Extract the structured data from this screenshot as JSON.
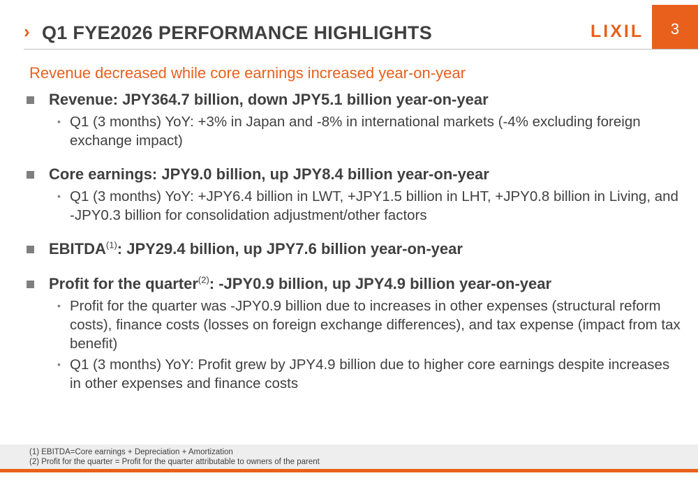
{
  "header": {
    "chevron": "›",
    "title": "Q1 FYE2026 PERFORMANCE HIGHLIGHTS",
    "logo_text": "LIXIL",
    "page_number": "3",
    "accent_color": "#e8601c"
  },
  "subtitle": "Revenue decreased while core earnings increased year-on-year",
  "bullets": [
    {
      "text": "Revenue: JPY364.7 billion, down JPY5.1 billion year-on-year",
      "subs": [
        "Q1 (3 months) YoY: +3% in Japan and -8% in international markets (-4% excluding foreign exchange impact)"
      ]
    },
    {
      "text": "Core earnings: JPY9.0 billion, up JPY8.4 billion year-on-year",
      "subs": [
        "Q1 (3 months) YoY: +JPY6.4 billion in LWT, +JPY1.5 billion in LHT, +JPY0.8 billion in Living, and -JPY0.3 billion for consolidation adjustment/other factors"
      ]
    },
    {
      "lead": "EBITDA",
      "sup": "(1)",
      "rest": ": JPY29.4 billion, up JPY7.6 billion year-on-year",
      "subs": []
    },
    {
      "lead": "Profit for the quarter",
      "sup": "(2)",
      "rest": ": -JPY0.9 billion, up JPY4.9 billion year-on-year",
      "subs": [
        "Profit for the quarter was -JPY0.9 billion due to increases in other expenses (structural reform costs), finance costs (losses on foreign exchange differences), and tax expense (impact from tax benefit)",
        "Q1 (3 months) YoY: Profit grew by JPY4.9 billion due to higher core earnings despite increases in other expenses and finance costs"
      ]
    }
  ],
  "footnotes": [
    "(1) EBITDA=Core earnings + Depreciation + Amortization",
    "(2) Profit for the quarter = Profit for the quarter attributable to owners of the parent"
  ]
}
